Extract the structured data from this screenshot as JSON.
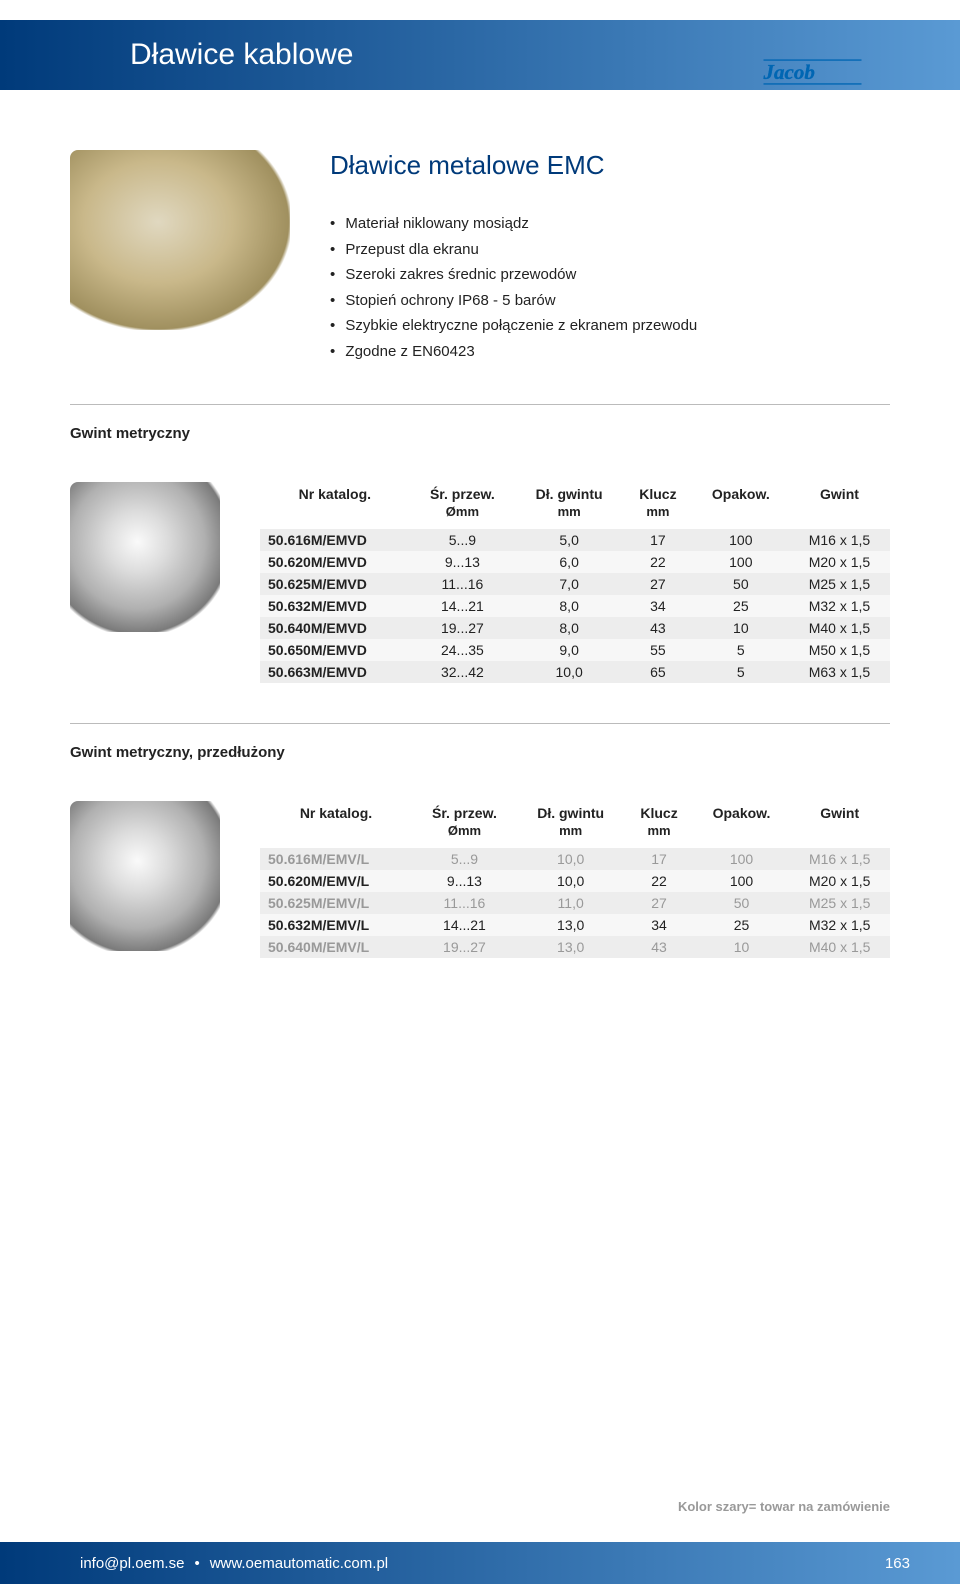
{
  "header": {
    "title": "Dławice kablowe",
    "logo_text": "Jacob"
  },
  "product": {
    "title": "Dławice metalowe EMC",
    "bullets": [
      "Materiał niklowany mosiądz",
      "Przepust dla ekranu",
      "Szeroki zakres średnic przewodów",
      "Stopień ochrony IP68 - 5 barów",
      "Szybkie elektryczne połączenie z ekranem przewodu",
      "Zgodne z EN60423"
    ]
  },
  "table1": {
    "section_label": "Gwint metryczny",
    "columns": [
      "Nr katalog.",
      "Śr. przew.",
      "Dł. gwintu",
      "Klucz",
      "Opakow.",
      "Gwint"
    ],
    "subcolumns": [
      "",
      "Ømm",
      "mm",
      "mm",
      "",
      ""
    ],
    "rows": [
      {
        "cells": [
          "50.616M/EMVD",
          "5...9",
          "5,0",
          "17",
          "100",
          "M16 x 1,5"
        ],
        "gray": false
      },
      {
        "cells": [
          "50.620M/EMVD",
          "9...13",
          "6,0",
          "22",
          "100",
          "M20 x 1,5"
        ],
        "gray": false
      },
      {
        "cells": [
          "50.625M/EMVD",
          "11...16",
          "7,0",
          "27",
          "50",
          "M25 x 1,5"
        ],
        "gray": false
      },
      {
        "cells": [
          "50.632M/EMVD",
          "14...21",
          "8,0",
          "34",
          "25",
          "M32 x 1,5"
        ],
        "gray": false
      },
      {
        "cells": [
          "50.640M/EMVD",
          "19...27",
          "8,0",
          "43",
          "10",
          "M40 x 1,5"
        ],
        "gray": false
      },
      {
        "cells": [
          "50.650M/EMVD",
          "24...35",
          "9,0",
          "55",
          "5",
          "M50 x 1,5"
        ],
        "gray": false
      },
      {
        "cells": [
          "50.663M/EMVD",
          "32...42",
          "10,0",
          "65",
          "5",
          "M63 x 1,5"
        ],
        "gray": false
      }
    ]
  },
  "table2": {
    "section_label": "Gwint metryczny, przedłużony",
    "columns": [
      "Nr katalog.",
      "Śr. przew.",
      "Dł. gwintu",
      "Klucz",
      "Opakow.",
      "Gwint"
    ],
    "subcolumns": [
      "",
      "Ømm",
      "mm",
      "mm",
      "",
      ""
    ],
    "rows": [
      {
        "cells": [
          "50.616M/EMV/L",
          "5...9",
          "10,0",
          "17",
          "100",
          "M16 x 1,5"
        ],
        "gray": true
      },
      {
        "cells": [
          "50.620M/EMV/L",
          "9...13",
          "10,0",
          "22",
          "100",
          "M20 x 1,5"
        ],
        "gray": false
      },
      {
        "cells": [
          "50.625M/EMV/L",
          "11...16",
          "11,0",
          "27",
          "50",
          "M25 x 1,5"
        ],
        "gray": true
      },
      {
        "cells": [
          "50.632M/EMV/L",
          "14...21",
          "13,0",
          "34",
          "25",
          "M32 x 1,5"
        ],
        "gray": false
      },
      {
        "cells": [
          "50.640M/EMV/L",
          "19...27",
          "13,0",
          "43",
          "10",
          "M40 x 1,5"
        ],
        "gray": true
      }
    ]
  },
  "footer_note": "Kolor szary= towar na zamówienie",
  "footer": {
    "email": "info@pl.oem.se",
    "separator": "•",
    "url": "www.oemautomatic.com.pl",
    "page": "163"
  },
  "styling": {
    "header_gradient_from": "#003a7a",
    "header_gradient_to": "#5a9ad4",
    "text_color": "#222222",
    "row_odd_bg": "#ededed",
    "row_even_bg": "#f7f7f7",
    "gray_row_text": "#999999"
  }
}
